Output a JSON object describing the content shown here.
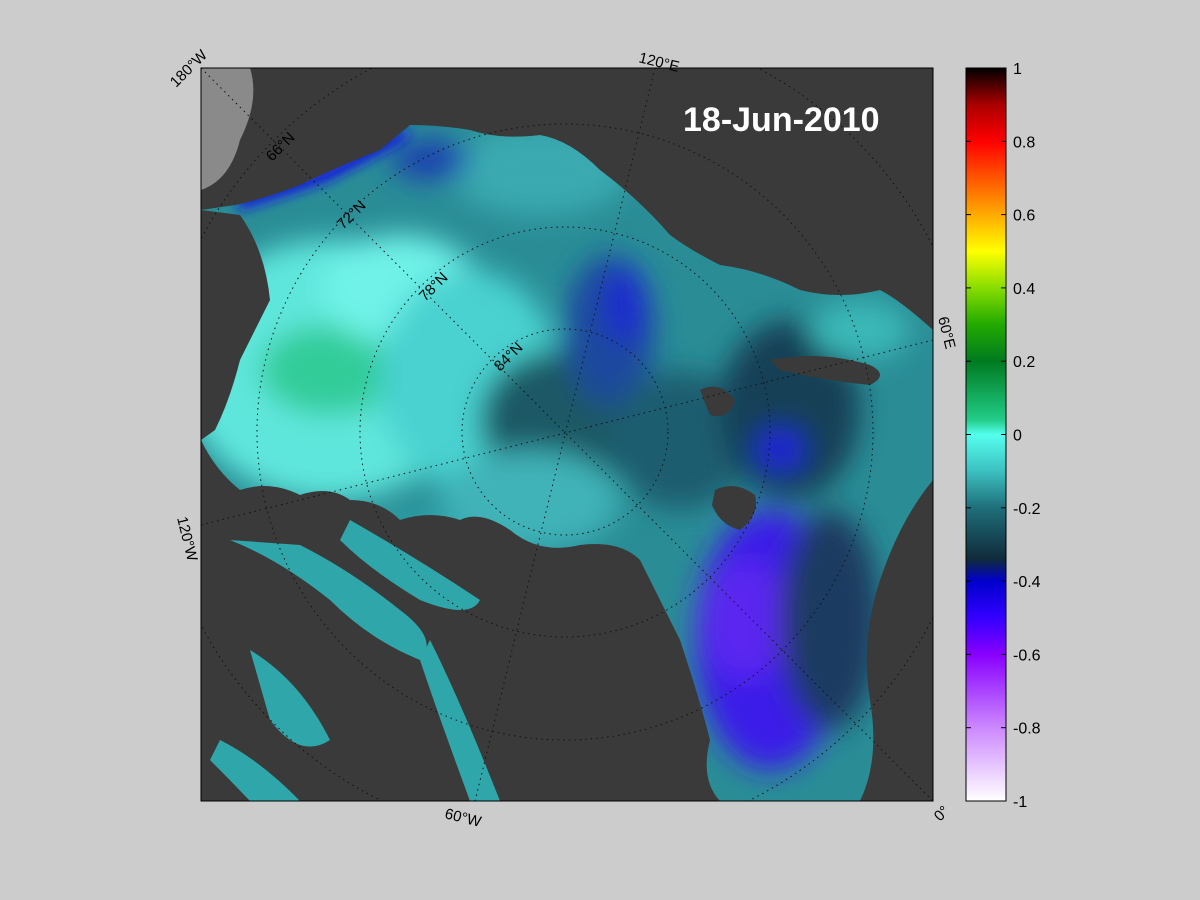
{
  "map": {
    "date": "18-Jun-2010",
    "longitude_labels": {
      "lon_180w": "180°W",
      "lon_120e": "120°E",
      "lon_60e": "60°E",
      "lon_120w": "120°W",
      "lon_60w": "60°W",
      "lon_0": "0°"
    },
    "latitude_labels": {
      "lat_66n": "66°N",
      "lat_72n": "72°N",
      "lat_78n": "78°N",
      "lat_84n": "84°N"
    },
    "colors": {
      "land": "#3a3a3a",
      "no_data": "#8a8a8a",
      "figure_background": "#cccccc"
    }
  },
  "colorbar": {
    "range": [
      -1,
      1
    ],
    "ticks": [
      "1",
      "0.8",
      "0.6",
      "0.4",
      "0.2",
      "0",
      "-0.2",
      "-0.4",
      "-0.6",
      "-0.8",
      "-1"
    ],
    "colormap": [
      "#ffffff",
      "#cc88ff",
      "#8800ff",
      "#3300ff",
      "#0000cc",
      "#102a3a",
      "#1f6f7a",
      "#3cc0c0",
      "#55ffee",
      "#22cc88",
      "#007a20",
      "#22aa00",
      "#88dd00",
      "#ffff00",
      "#ffaa00",
      "#ff5500",
      "#ff0000",
      "#aa0000",
      "#550000",
      "#000000"
    ]
  }
}
